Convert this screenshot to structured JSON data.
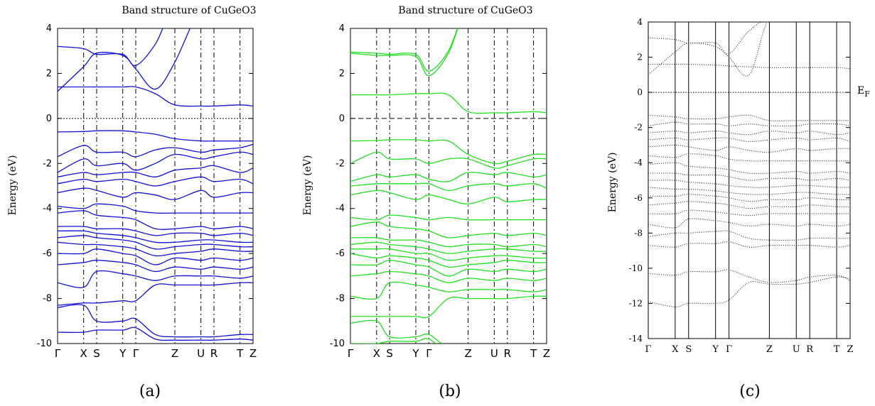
{
  "chart_data": [
    {
      "type": "line",
      "caption": "(a)",
      "title": "Band structure of CuGeO3",
      "ylabel": "Energy (eV)",
      "ylim": [
        -10,
        4
      ],
      "yticks": [
        4,
        2,
        0,
        -2,
        -4,
        -6,
        -8,
        -10
      ],
      "color": "#1010d0",
      "kpath": [
        {
          "label": "Γ",
          "x": 0.0
        },
        {
          "label": "X",
          "x": 1.0
        },
        {
          "label": "S",
          "x": 1.5
        },
        {
          "label": "Y",
          "x": 2.5
        },
        {
          "label": "Γ",
          "x": 3.0
        },
        {
          "label": "Z",
          "x": 4.5
        },
        {
          "label": "U",
          "x": 5.5
        },
        {
          "label": "R",
          "x": 6.0
        },
        {
          "label": "T",
          "x": 7.0
        },
        {
          "label": "Z",
          "x": 7.5
        }
      ],
      "fermi_level": 0,
      "bands": [
        [
          1.2,
          2.3,
          2.9,
          2.8,
          2.2,
          1.3,
          2.5,
          5.0,
          5.0,
          5.0,
          5.0
        ],
        [
          3.2,
          3.1,
          2.85,
          2.85,
          2.35,
          3.3,
          5.0,
          5.0,
          5.0,
          5.0,
          5.0
        ],
        [
          1.4,
          1.4,
          1.4,
          1.4,
          1.4,
          1.1,
          0.6,
          0.55,
          0.55,
          0.6,
          0.55
        ],
        [
          -0.6,
          -0.58,
          -0.55,
          -0.55,
          -0.6,
          -0.7,
          -0.9,
          -1.0,
          -1.0,
          -1.0,
          -1.0
        ],
        [
          -1.7,
          -1.2,
          -1.5,
          -1.5,
          -1.7,
          -1.4,
          -1.3,
          -1.5,
          -1.4,
          -1.3,
          -1.15
        ],
        [
          -2.4,
          -1.8,
          -2.1,
          -2.0,
          -2.3,
          -2.0,
          -1.6,
          -1.8,
          -1.7,
          -1.5,
          -1.6
        ],
        [
          -2.6,
          -2.4,
          -2.5,
          -2.4,
          -2.4,
          -2.6,
          -2.3,
          -2.2,
          -2.1,
          -2.4,
          -2.2
        ],
        [
          -2.9,
          -2.7,
          -2.8,
          -2.7,
          -2.8,
          -3.0,
          -2.8,
          -2.6,
          -2.8,
          -2.7,
          -2.9
        ],
        [
          -3.3,
          -3.1,
          -3.2,
          -3.5,
          -3.3,
          -3.4,
          -3.6,
          -3.2,
          -3.5,
          -3.3,
          -3.3
        ],
        [
          -3.9,
          -4.0,
          -3.8,
          -3.9,
          -4.1,
          -4.2,
          -4.2,
          -4.2,
          -4.2,
          -4.2,
          -4.2
        ],
        [
          -4.2,
          -4.1,
          -4.3,
          -4.4,
          -4.5,
          -4.9,
          -4.9,
          -4.8,
          -4.9,
          -4.8,
          -4.9
        ],
        [
          -4.8,
          -4.8,
          -4.9,
          -4.9,
          -5.0,
          -5.2,
          -5.1,
          -5.1,
          -5.2,
          -5.1,
          -5.2
        ],
        [
          -5.0,
          -5.0,
          -5.1,
          -5.2,
          -5.3,
          -5.5,
          -5.5,
          -5.4,
          -5.4,
          -5.5,
          -5.5
        ],
        [
          -5.3,
          -5.2,
          -5.3,
          -5.4,
          -5.5,
          -5.8,
          -5.7,
          -5.6,
          -5.6,
          -5.7,
          -5.7
        ],
        [
          -5.5,
          -5.6,
          -5.6,
          -5.7,
          -5.8,
          -6.1,
          -6.0,
          -5.9,
          -5.8,
          -5.9,
          -5.9
        ],
        [
          -6.0,
          -6.0,
          -5.8,
          -6.0,
          -6.1,
          -6.5,
          -6.2,
          -6.3,
          -6.2,
          -6.3,
          -6.2
        ],
        [
          -6.5,
          -6.4,
          -6.3,
          -6.4,
          -6.5,
          -6.8,
          -6.6,
          -6.7,
          -6.6,
          -6.7,
          -6.6
        ],
        [
          -7.3,
          -7.5,
          -6.8,
          -6.9,
          -7.0,
          -7.2,
          -7.0,
          -7.0,
          -7.0,
          -7.1,
          -7.0
        ],
        [
          -8.3,
          -8.2,
          -8.2,
          -8.1,
          -8.1,
          -7.4,
          -7.4,
          -7.4,
          -7.4,
          -7.3,
          -7.3
        ],
        [
          -8.4,
          -8.3,
          -9.0,
          -9.0,
          -8.9,
          -9.6,
          -9.7,
          -9.7,
          -9.7,
          -9.6,
          -9.6
        ],
        [
          -9.5,
          -9.5,
          -9.4,
          -9.4,
          -9.3,
          -9.8,
          -9.85,
          -9.85,
          -9.85,
          -9.8,
          -9.85
        ]
      ]
    },
    {
      "type": "line",
      "caption": "(b)",
      "title": "Band structure of CuGeO3",
      "ylabel": "Energy (eV)",
      "ylim": [
        -10,
        4
      ],
      "yticks": [
        4,
        2,
        0,
        -2,
        -4,
        -6,
        -8,
        -10
      ],
      "color": "#22e022",
      "kpath": [
        {
          "label": "Γ",
          "x": 0.0
        },
        {
          "label": "X",
          "x": 1.0
        },
        {
          "label": "S",
          "x": 1.5
        },
        {
          "label": "Y",
          "x": 2.5
        },
        {
          "label": "Γ",
          "x": 3.0
        },
        {
          "label": "Z",
          "x": 4.5
        },
        {
          "label": "U",
          "x": 5.5
        },
        {
          "label": "R",
          "x": 6.0
        },
        {
          "label": "T",
          "x": 7.0
        },
        {
          "label": "Z",
          "x": 7.5
        }
      ],
      "fermi_level": 0,
      "bands": [
        [
          2.9,
          2.8,
          2.8,
          2.75,
          1.9,
          2.9,
          5.0,
          5.0,
          5.0,
          5.0,
          5.0
        ],
        [
          2.95,
          2.9,
          2.85,
          2.85,
          2.1,
          3.0,
          5.0,
          5.0,
          5.0,
          5.0,
          5.0
        ],
        [
          1.05,
          1.05,
          1.05,
          1.1,
          1.1,
          1.05,
          0.3,
          0.25,
          0.25,
          0.3,
          0.25
        ],
        [
          -1.0,
          -0.98,
          -0.95,
          -0.95,
          -1.0,
          -1.0,
          -1.6,
          -2.0,
          -1.9,
          -1.6,
          -1.6
        ],
        [
          -2.0,
          -1.5,
          -1.8,
          -1.8,
          -2.0,
          -1.8,
          -1.8,
          -2.2,
          -2.1,
          -1.8,
          -1.8
        ],
        [
          -2.8,
          -2.5,
          -2.6,
          -2.5,
          -2.7,
          -2.8,
          -2.4,
          -2.5,
          -2.4,
          -2.6,
          -2.5
        ],
        [
          -3.0,
          -2.9,
          -2.9,
          -2.9,
          -2.9,
          -3.2,
          -3.0,
          -2.9,
          -3.0,
          -2.9,
          -3.1
        ],
        [
          -3.4,
          -3.2,
          -3.3,
          -3.6,
          -3.4,
          -3.6,
          -3.8,
          -3.5,
          -3.7,
          -3.6,
          -3.6
        ],
        [
          -4.4,
          -4.5,
          -4.3,
          -4.4,
          -4.5,
          -4.4,
          -4.5,
          -4.5,
          -4.5,
          -4.5,
          -4.5
        ],
        [
          -4.8,
          -4.6,
          -4.8,
          -4.9,
          -5.0,
          -5.3,
          -5.2,
          -5.1,
          -5.2,
          -5.1,
          -5.2
        ],
        [
          -5.3,
          -5.3,
          -5.4,
          -5.4,
          -5.5,
          -5.7,
          -5.6,
          -5.6,
          -5.7,
          -5.6,
          -5.7
        ],
        [
          -5.6,
          -5.5,
          -5.6,
          -5.7,
          -5.8,
          -6.0,
          -5.9,
          -5.8,
          -5.8,
          -5.9,
          -5.9
        ],
        [
          -5.8,
          -5.8,
          -5.8,
          -6.0,
          -6.0,
          -6.3,
          -6.2,
          -6.1,
          -6.1,
          -6.2,
          -6.2
        ],
        [
          -6.0,
          -6.2,
          -6.1,
          -6.2,
          -6.3,
          -6.6,
          -6.5,
          -6.4,
          -6.3,
          -6.4,
          -6.4
        ],
        [
          -6.5,
          -6.5,
          -6.3,
          -6.5,
          -6.6,
          -7.0,
          -6.7,
          -6.8,
          -6.7,
          -6.8,
          -6.7
        ],
        [
          -7.0,
          -6.9,
          -6.8,
          -6.9,
          -7.0,
          -7.3,
          -7.1,
          -7.2,
          -7.1,
          -7.2,
          -7.1
        ],
        [
          -7.9,
          -8.0,
          -7.3,
          -7.4,
          -7.5,
          -7.7,
          -7.6,
          -7.6,
          -7.6,
          -7.7,
          -7.6
        ],
        [
          -8.8,
          -8.8,
          -8.8,
          -8.8,
          -8.8,
          -8.0,
          -8.0,
          -8.0,
          -8.0,
          -7.9,
          -7.9
        ],
        [
          -9.1,
          -9.0,
          -9.7,
          -9.7,
          -9.6,
          -10.2,
          -10.3,
          -10.3,
          -10.3,
          -10.2,
          -10.2
        ],
        [
          -10.0,
          -10.0,
          -9.9,
          -9.9,
          -9.8,
          -10.4,
          -10.4,
          -10.4,
          -10.4,
          -10.4,
          -10.4
        ]
      ]
    },
    {
      "type": "line",
      "caption": "(c)",
      "title": "",
      "ylabel": "Energy (eV)",
      "ylim": [
        -14,
        4
      ],
      "yticks": [
        4,
        2,
        0,
        -2,
        -4,
        -6,
        -8,
        -10,
        -12,
        -14
      ],
      "color": "#444444",
      "fermi_label": "E",
      "fermi_label_sub": "F",
      "kpath": [
        {
          "label": "Γ",
          "x": 0.0
        },
        {
          "label": "X",
          "x": 1.0
        },
        {
          "label": "S",
          "x": 1.5
        },
        {
          "label": "Y",
          "x": 2.5
        },
        {
          "label": "Γ",
          "x": 3.0
        },
        {
          "label": "Z",
          "x": 4.5
        },
        {
          "label": "U",
          "x": 5.5
        },
        {
          "label": "R",
          "x": 6.0
        },
        {
          "label": "T",
          "x": 7.0
        },
        {
          "label": "Z",
          "x": 7.5
        }
      ],
      "fermi_level": 0,
      "bands": [
        [
          1.0,
          2.3,
          2.8,
          2.6,
          2.0,
          1.0,
          4.2,
          4.2,
          4.2,
          4.2,
          4.2
        ],
        [
          3.1,
          3.0,
          2.8,
          2.8,
          2.2,
          3.5,
          4.2,
          4.2,
          4.2,
          4.2,
          4.2
        ],
        [
          1.6,
          1.6,
          1.6,
          1.55,
          1.5,
          1.45,
          1.4,
          1.4,
          1.4,
          1.4,
          1.35
        ],
        [
          -1.3,
          -1.4,
          -1.5,
          -1.5,
          -1.4,
          -1.3,
          -1.6,
          -1.6,
          -1.6,
          -1.6,
          -1.6
        ],
        [
          -1.9,
          -1.7,
          -1.8,
          -1.8,
          -1.9,
          -1.8,
          -1.9,
          -1.9,
          -1.8,
          -1.8,
          -1.9
        ],
        [
          -2.3,
          -2.2,
          -2.3,
          -2.2,
          -2.3,
          -2.4,
          -2.2,
          -2.3,
          -2.2,
          -2.4,
          -2.3
        ],
        [
          -2.7,
          -2.6,
          -2.7,
          -2.6,
          -2.6,
          -2.8,
          -2.7,
          -2.6,
          -2.7,
          -2.6,
          -2.8
        ],
        [
          -3.1,
          -3.0,
          -3.1,
          -3.3,
          -3.1,
          -3.3,
          -3.4,
          -3.2,
          -3.3,
          -3.2,
          -3.2
        ],
        [
          -3.6,
          -3.7,
          -3.5,
          -3.6,
          -3.8,
          -3.9,
          -3.9,
          -3.9,
          -3.9,
          -3.9,
          -3.9
        ],
        [
          -4.1,
          -4.0,
          -4.2,
          -4.3,
          -4.4,
          -4.6,
          -4.6,
          -4.5,
          -4.6,
          -4.5,
          -4.6
        ],
        [
          -4.6,
          -4.6,
          -4.7,
          -4.7,
          -4.8,
          -5.0,
          -4.9,
          -4.9,
          -5.0,
          -4.9,
          -5.0
        ],
        [
          -5.0,
          -5.0,
          -5.1,
          -5.2,
          -5.3,
          -5.4,
          -5.4,
          -5.3,
          -5.3,
          -5.4,
          -5.4
        ],
        [
          -5.4,
          -5.5,
          -5.5,
          -5.6,
          -5.7,
          -5.8,
          -5.8,
          -5.7,
          -5.7,
          -5.8,
          -5.8
        ],
        [
          -5.9,
          -5.9,
          -5.8,
          -5.9,
          -6.0,
          -6.2,
          -6.1,
          -6.1,
          -6.0,
          -6.1,
          -6.1
        ],
        [
          -6.4,
          -6.3,
          -6.2,
          -6.3,
          -6.4,
          -6.6,
          -6.5,
          -6.5,
          -6.4,
          -6.5,
          -6.5
        ],
        [
          -6.9,
          -6.9,
          -6.7,
          -6.8,
          -6.9,
          -7.0,
          -6.9,
          -6.9,
          -6.9,
          -6.9,
          -6.9
        ],
        [
          -7.5,
          -7.7,
          -7.2,
          -7.3,
          -7.4,
          -7.6,
          -7.5,
          -7.6,
          -7.5,
          -7.6,
          -7.5
        ],
        [
          -8.2,
          -8.0,
          -8.0,
          -7.9,
          -7.9,
          -8.3,
          -8.4,
          -8.4,
          -8.3,
          -8.3,
          -8.3
        ],
        [
          -8.7,
          -8.8,
          -8.6,
          -8.6,
          -8.5,
          -8.8,
          -8.7,
          -8.7,
          -8.7,
          -8.8,
          -8.7
        ],
        [
          -10.3,
          -10.4,
          -10.2,
          -10.2,
          -10.1,
          -10.5,
          -10.8,
          -10.7,
          -10.5,
          -10.4,
          -10.7
        ],
        [
          -11.9,
          -12.2,
          -12.0,
          -12.0,
          -11.8,
          -10.8,
          -10.9,
          -10.9,
          -10.8,
          -10.5,
          -10.6
        ]
      ]
    }
  ]
}
